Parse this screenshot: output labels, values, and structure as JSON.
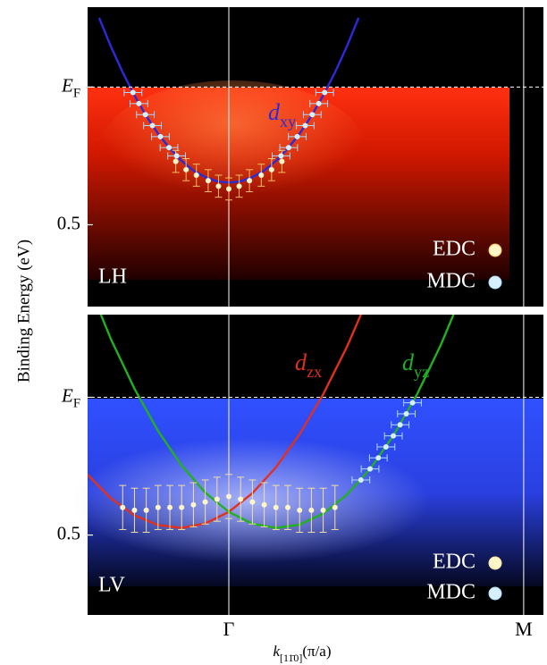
{
  "chart_data": [
    {
      "type": "scatter",
      "ylabel": "Binding Energy (eV)",
      "panel_label": "LH",
      "xlim": [
        -0.479,
        1.067
      ],
      "ylim": [
        -0.29,
        0.797
      ],
      "yticks": [
        {
          "value": 0,
          "label": "EF"
        },
        0.5
      ],
      "hline": 0,
      "legend": "lower right",
      "series": [
        {
          "name": "dxy",
          "type": "line",
          "color": "#2b2bd9",
          "x": [
            -0.44,
            -0.4,
            -0.36,
            -0.32,
            -0.28,
            -0.24,
            -0.2,
            -0.16,
            -0.12,
            -0.08,
            -0.04,
            0,
            0.04,
            0.08,
            0.12,
            0.16,
            0.2,
            0.24,
            0.28,
            0.32,
            0.36,
            0.4,
            0.44
          ],
          "values": [
            -0.251,
            -0.147,
            -0.053,
            0.031,
            0.105,
            0.169,
            0.223,
            0.268,
            0.303,
            0.327,
            0.342,
            0.347,
            0.342,
            0.327,
            0.303,
            0.268,
            0.223,
            0.169,
            0.105,
            0.031,
            -0.053,
            -0.147,
            -0.251
          ]
        },
        {
          "name": "EDC",
          "type": "scatter",
          "color": "#fff6c8",
          "err_color": "#f2c060",
          "x": [
            -0.18,
            -0.145,
            -0.11,
            -0.07,
            -0.035,
            0,
            0.035,
            0.07,
            0.11,
            0.145,
            0.18
          ],
          "values": [
            0.27,
            0.3,
            0.32,
            0.34,
            0.36,
            0.37,
            0.36,
            0.34,
            0.32,
            0.3,
            0.27
          ],
          "yerr": [
            0.04,
            0.04,
            0.04,
            0.04,
            0.04,
            0.04,
            0.04,
            0.04,
            0.04,
            0.04,
            0.04
          ]
        },
        {
          "name": "MDC",
          "type": "scatter",
          "color": "#d6f0ff",
          "err_color": "#a8dcff",
          "x": [
            -0.325,
            -0.305,
            -0.283,
            -0.259,
            -0.232,
            -0.203,
            -0.177,
            0.177,
            0.203,
            0.232,
            0.259,
            0.283,
            0.305,
            0.325
          ],
          "values": [
            0.02,
            0.06,
            0.1,
            0.14,
            0.18,
            0.22,
            0.25,
            0.25,
            0.22,
            0.18,
            0.14,
            0.1,
            0.06,
            0.02
          ],
          "xerr": [
            0.03,
            0.03,
            0.03,
            0.03,
            0.03,
            0.03,
            0.03,
            0.03,
            0.03,
            0.03,
            0.03,
            0.03,
            0.03,
            0.03
          ]
        }
      ]
    },
    {
      "type": "scatter",
      "panel_label": "LV",
      "xlabel": "k[11̄0](π/a)",
      "xlim": [
        -0.479,
        1.067
      ],
      "ylim": [
        -0.3,
        0.79
      ],
      "xticks": [
        {
          "value": 0,
          "label": "Γ"
        },
        {
          "value": 1,
          "label": "M"
        }
      ],
      "yticks": [
        {
          "value": 0,
          "label": "EF"
        },
        0.5
      ],
      "hline": 0,
      "legend": "lower right",
      "series": [
        {
          "name": "dzx",
          "type": "line",
          "color": "#e03020",
          "x": [
            -0.48,
            -0.4,
            -0.32,
            -0.24,
            -0.16,
            -0.08,
            0,
            0.08,
            0.16,
            0.24,
            0.32,
            0.4,
            0.48,
            0.56,
            0.64,
            0.72,
            0.8
          ],
          "values": [
            0.28,
            0.367,
            0.429,
            0.464,
            0.474,
            0.458,
            0.416,
            0.348,
            0.254,
            0.134,
            -0.011,
            -0.182,
            -0.379,
            null,
            null,
            null,
            null
          ]
        },
        {
          "name": "dyz",
          "type": "line",
          "color": "#22b022",
          "x": [
            -0.48,
            -0.4,
            -0.32,
            -0.24,
            -0.16,
            -0.08,
            0,
            0.08,
            0.16,
            0.24,
            0.32,
            0.4,
            0.48,
            0.56,
            0.64,
            0.72,
            0.8
          ],
          "values": [
            -0.42,
            -0.211,
            -0.031,
            0.122,
            0.248,
            0.346,
            0.416,
            0.459,
            0.474,
            0.462,
            0.422,
            0.354,
            0.259,
            0.136,
            -0.014,
            -0.192,
            -0.398
          ]
        },
        {
          "name": "EDC",
          "type": "scatter",
          "color": "#fff6c8",
          "err_color": "#f2e0a0",
          "x": [
            -0.36,
            -0.32,
            -0.28,
            -0.24,
            -0.2,
            -0.16,
            -0.12,
            -0.08,
            -0.04,
            0,
            0.04,
            0.08,
            0.12,
            0.16,
            0.2,
            0.24,
            0.28,
            0.32,
            0.36
          ],
          "values": [
            0.4,
            0.41,
            0.41,
            0.4,
            0.4,
            0.4,
            0.39,
            0.38,
            0.37,
            0.36,
            0.37,
            0.38,
            0.39,
            0.4,
            0.4,
            0.41,
            0.41,
            0.41,
            0.4
          ],
          "yerr": [
            0.08,
            0.08,
            0.08,
            0.08,
            0.08,
            0.08,
            0.08,
            0.08,
            0.08,
            0.08,
            0.08,
            0.08,
            0.08,
            0.08,
            0.08,
            0.08,
            0.08,
            0.08,
            0.08
          ]
        },
        {
          "name": "MDC",
          "type": "scatter",
          "color": "#d6f0ff",
          "err_color": "#a8dcff",
          "x": [
            0.623,
            0.602,
            0.581,
            0.558,
            0.533,
            0.507,
            0.479,
            0.448
          ],
          "values": [
            0.02,
            0.06,
            0.1,
            0.14,
            0.18,
            0.22,
            0.26,
            0.3
          ],
          "xerr": [
            0.03,
            0.03,
            0.03,
            0.03,
            0.03,
            0.03,
            0.03,
            0.03
          ]
        }
      ]
    }
  ]
}
